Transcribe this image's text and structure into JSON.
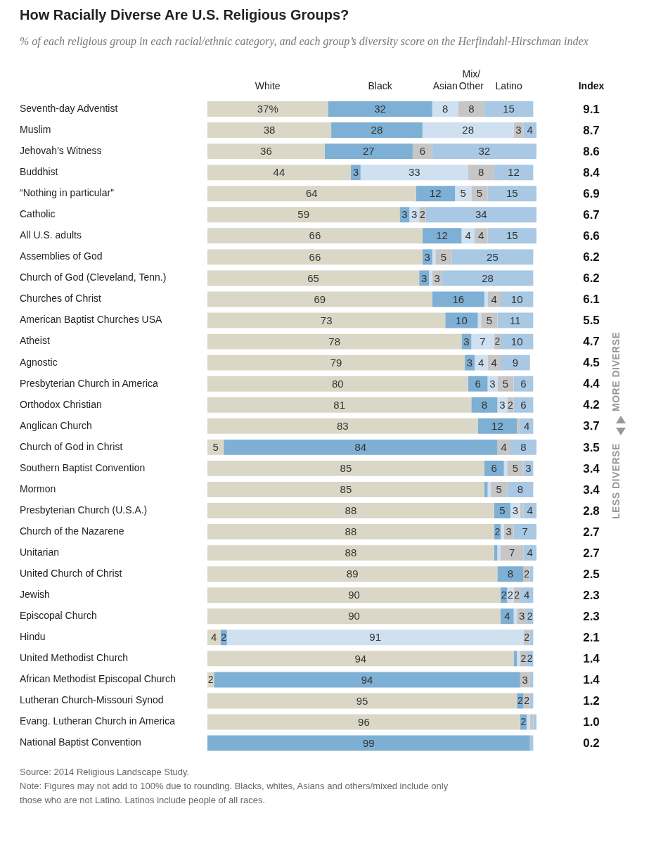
{
  "chart_data": {
    "type": "bar",
    "orientation": "horizontal",
    "stacked": true,
    "legend": "top",
    "grid": false,
    "data_labels": false,
    "title": "How Racially Diverse Are U.S. Religious Groups?",
    "subtitle": "% of each religious group in each racial/ethnic category, and each group’s diversity score on the Herfindahl-Hirschman index",
    "categories": [
      "Seventh-day Adventist",
      "Muslim",
      "Jehovah’s Witness",
      "Buddhist",
      "“Nothing in particular”",
      "Catholic",
      "All U.S. adults",
      "Assemblies of God",
      "Church of God (Cleveland, Tenn.)",
      "Churches of Christ",
      "American Baptist Churches USA",
      "Atheist",
      "Agnostic",
      "Presbyterian Church in America",
      "Orthodox Christian",
      "Anglican Church",
      "Church of God in Christ",
      "Southern Baptist Convention",
      "Mormon",
      "Presbyterian Church (U.S.A.)",
      "Church of the Nazarene",
      "Unitarian",
      "United Church of Christ",
      "Jewish",
      "Episcopal Church",
      "Hindu",
      "United Methodist Church",
      "African Methodist Episcopal Church",
      "Lutheran Church-Missouri Synod",
      "Evang. Lutheran Church in America",
      "National Baptist Convention"
    ],
    "series": [
      {
        "name": "White",
        "color": "#dad7c7",
        "values": [
          37,
          38,
          36,
          44,
          64,
          59,
          66,
          66,
          65,
          69,
          73,
          78,
          79,
          80,
          81,
          83,
          5,
          85,
          85,
          88,
          88,
          88,
          89,
          90,
          90,
          4,
          94,
          2,
          95,
          96,
          0
        ],
        "value_labels": [
          "37%",
          "38",
          "36",
          "44",
          "64",
          "59",
          "66",
          "66",
          "65",
          "69",
          "73",
          "78",
          "79",
          "80",
          "81",
          "83",
          "5",
          "85",
          "85",
          "88",
          "88",
          "88",
          "89",
          "90",
          "90",
          "4",
          "94",
          "2",
          "95",
          "96",
          null
        ]
      },
      {
        "name": "Black",
        "color": "#7eafd4",
        "values": [
          32,
          28,
          27,
          3,
          12,
          3,
          12,
          3,
          3,
          16,
          10,
          3,
          3,
          6,
          8,
          12,
          84,
          6,
          1,
          5,
          2,
          1,
          8,
          2,
          4,
          2,
          1,
          94,
          2,
          2,
          99
        ],
        "value_labels": [
          "32",
          "28",
          "27",
          "3",
          "12",
          "3",
          "12",
          "3",
          "3",
          "16",
          "10",
          "3",
          "3",
          "6",
          "8",
          "12",
          "84",
          "6",
          null,
          "5",
          "2",
          null,
          "8",
          "2",
          "4",
          "2",
          null,
          "94",
          "2",
          "2",
          "99"
        ]
      },
      {
        "name": "Asian",
        "color": "#cfe0f0",
        "values": [
          8,
          28,
          0,
          33,
          5,
          3,
          4,
          1,
          1,
          1,
          1,
          7,
          4,
          3,
          3,
          0,
          0,
          1,
          1,
          3,
          1,
          1,
          0,
          2,
          1,
          91,
          1,
          0,
          0,
          1,
          0
        ],
        "value_labels": [
          "8",
          "28",
          null,
          "33",
          "5",
          "3",
          "4",
          null,
          null,
          null,
          null,
          "7",
          "4",
          "3",
          "3",
          null,
          null,
          null,
          null,
          "3",
          null,
          null,
          null,
          "2",
          null,
          "91",
          null,
          null,
          null,
          null,
          null
        ]
      },
      {
        "name": "Mix/Other",
        "color": "#c6c6c6",
        "values": [
          8,
          3,
          6,
          8,
          5,
          2,
          4,
          5,
          3,
          4,
          5,
          2,
          4,
          5,
          2,
          1,
          4,
          5,
          5,
          1,
          3,
          7,
          2,
          2,
          3,
          2,
          2,
          3,
          2,
          1,
          0
        ],
        "value_labels": [
          "8",
          "3",
          "6",
          "8",
          "5",
          "2",
          "4",
          "5",
          "3",
          "4",
          "5",
          "2",
          "4",
          "5",
          "2",
          null,
          "4",
          "5",
          "5",
          null,
          "3",
          "7",
          "2",
          "2",
          "3",
          "2",
          "2",
          "3",
          "2",
          null,
          null
        ]
      },
      {
        "name": "Latino",
        "color": "#a8c8e3",
        "values": [
          15,
          4,
          32,
          12,
          15,
          34,
          15,
          25,
          28,
          10,
          11,
          10,
          9,
          6,
          6,
          4,
          8,
          3,
          8,
          4,
          7,
          4,
          1,
          4,
          2,
          1,
          2,
          1,
          1,
          1,
          1
        ],
        "value_labels": [
          "15",
          "4",
          "32",
          "12",
          "15",
          "34",
          "15",
          "25",
          "28",
          "10",
          "11",
          "10",
          "9",
          "6",
          "6",
          "4",
          "8",
          "3",
          "8",
          "4",
          "7",
          "4",
          null,
          "4",
          "2",
          null,
          "2",
          null,
          null,
          null,
          null
        ]
      }
    ],
    "annotations": [
      "Index",
      "MORE DIVERSE",
      "LESS DIVERSE",
      "Source: 2014 Religious Landscape Study.",
      "Note: Figures may not add to 100% due to rounding. Blacks, whites, Asians and others/mixed include only those who are not Latino. Latinos include people of all races.",
      "9.1",
      "8.7",
      "8.6",
      "8.4",
      "6.9",
      "6.7",
      "6.6",
      "6.2",
      "6.2",
      "6.1",
      "5.5",
      "4.7",
      "4.5",
      "4.4",
      "4.2",
      "3.7",
      "3.5",
      "3.4",
      "3.4",
      "2.8",
      "2.7",
      "2.7",
      "2.5",
      "2.3",
      "2.3",
      "2.1",
      "1.4",
      "1.4",
      "1.2",
      "1.0",
      "0.2"
    ]
  }
}
